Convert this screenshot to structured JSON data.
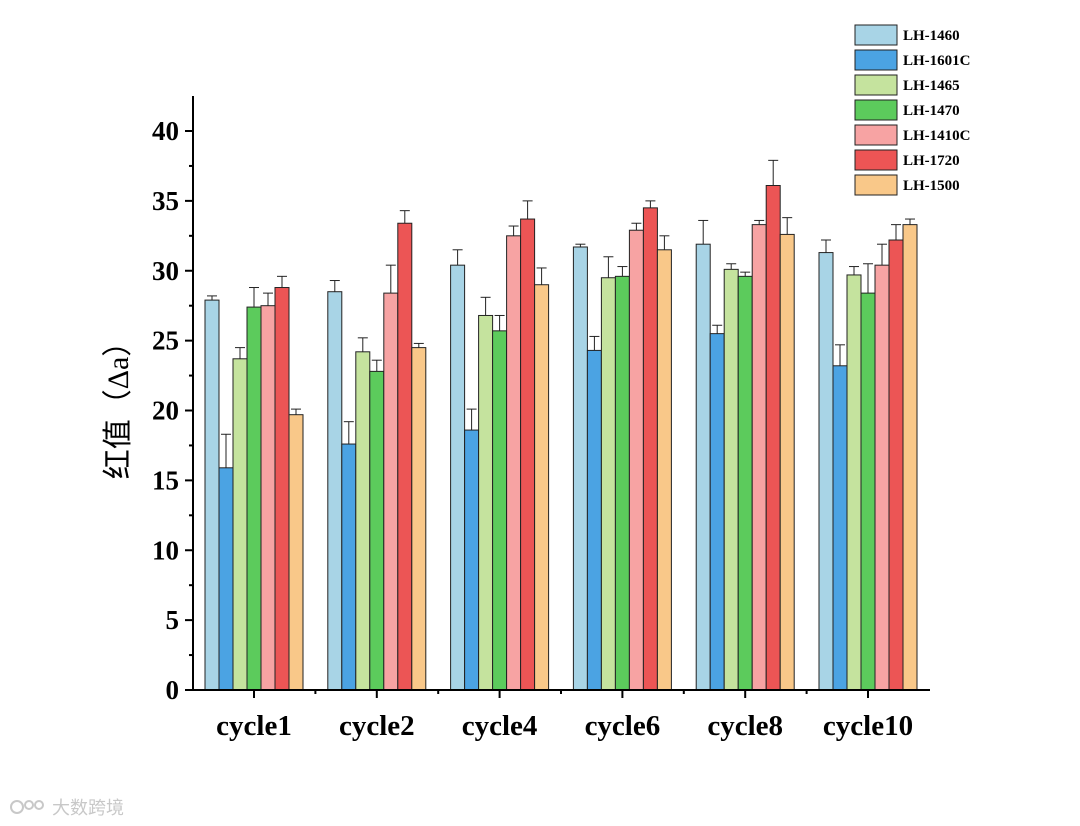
{
  "chart_data": {
    "type": "bar",
    "ylabel": "红值（Δa）",
    "xlabel": "",
    "ylim": [
      0,
      42
    ],
    "yticks": [
      0,
      5,
      10,
      15,
      20,
      25,
      30,
      35,
      40
    ],
    "categories": [
      "cycle1",
      "cycle2",
      "cycle4",
      "cycle6",
      "cycle8",
      "cycle10"
    ],
    "legend_position": "top-right",
    "series": [
      {
        "name": "LH-1460",
        "color": "#a8d4e6",
        "values": [
          27.9,
          28.5,
          30.4,
          31.7,
          31.9,
          31.3
        ],
        "errors": [
          0.3,
          0.8,
          1.1,
          0.2,
          1.7,
          0.9
        ]
      },
      {
        "name": "LH-1601C",
        "color": "#4ba3e3",
        "values": [
          15.9,
          17.6,
          18.6,
          24.3,
          25.5,
          23.2
        ],
        "errors": [
          2.4,
          1.6,
          1.5,
          1.0,
          0.6,
          1.5
        ]
      },
      {
        "name": "LH-1465",
        "color": "#c5e39e",
        "values": [
          23.7,
          24.2,
          26.8,
          29.5,
          30.1,
          29.7
        ],
        "errors": [
          0.8,
          1.0,
          1.3,
          1.5,
          0.4,
          0.6
        ]
      },
      {
        "name": "LH-1470",
        "color": "#5ccb5c",
        "values": [
          27.4,
          22.8,
          25.7,
          29.6,
          29.6,
          28.4
        ],
        "errors": [
          1.4,
          0.8,
          1.1,
          0.7,
          0.3,
          2.1
        ]
      },
      {
        "name": "LH-1410C",
        "color": "#f7a3a3",
        "values": [
          27.5,
          28.4,
          32.5,
          32.9,
          33.3,
          30.4
        ],
        "errors": [
          0.9,
          2.0,
          0.7,
          0.5,
          0.3,
          1.5
        ]
      },
      {
        "name": "LH-1720",
        "color": "#ec5555",
        "values": [
          28.8,
          33.4,
          33.7,
          34.5,
          36.1,
          32.2
        ],
        "errors": [
          0.8,
          0.9,
          1.3,
          0.5,
          1.8,
          1.1
        ]
      },
      {
        "name": "LH-1500",
        "color": "#f9c889",
        "values": [
          19.7,
          24.5,
          29.0,
          31.5,
          32.6,
          33.3
        ],
        "errors": [
          0.4,
          0.3,
          1.2,
          1.0,
          1.2,
          0.4
        ]
      }
    ]
  },
  "watermark": {
    "text": "大数跨境"
  }
}
